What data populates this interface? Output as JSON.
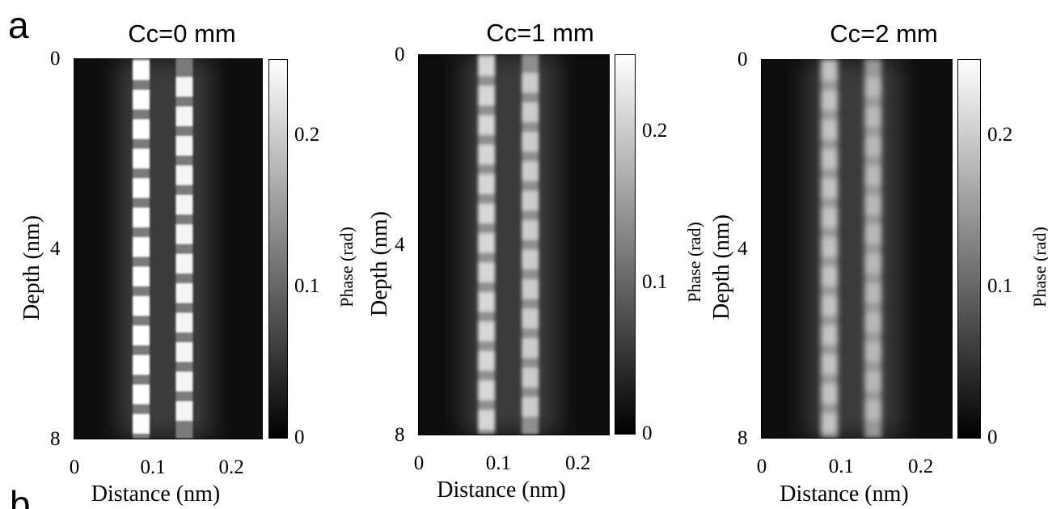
{
  "figure": {
    "letters": [
      "a",
      "b"
    ]
  },
  "chart_data": [
    {
      "type": "heatmap",
      "title": "Cc=0 mm",
      "xlabel": "Distance (nm)",
      "ylabel": "Depth (nm)",
      "colorbar_label": "Phase (rad)",
      "xlim": [
        0,
        0.24
      ],
      "ylim": [
        8,
        0
      ],
      "x_ticks": [
        "0",
        "0.1",
        "0.2"
      ],
      "y_ticks": [
        "0",
        "4",
        "8"
      ],
      "colorbar_range": [
        0,
        0.25
      ],
      "colorbar_ticks": [
        "0",
        "0.1",
        "0.2"
      ],
      "columns": [
        {
          "x": 0.085,
          "y_start": 0.25,
          "y_step": 0.62,
          "count": 13,
          "peak": 0.25,
          "base": 0.12
        },
        {
          "x": 0.14,
          "y_start": 0.6,
          "y_step": 0.62,
          "count": 12,
          "peak": 0.24,
          "base": 0.12
        }
      ]
    },
    {
      "type": "heatmap",
      "title": "Cc=1 mm",
      "xlabel": "Distance (nm)",
      "ylabel": "Depth (nm)",
      "colorbar_label": "Phase (rad)",
      "xlim": [
        0,
        0.24
      ],
      "ylim": [
        8,
        0
      ],
      "x_ticks": [
        "0",
        "0.1",
        "0.2"
      ],
      "y_ticks": [
        "0",
        "4",
        "8"
      ],
      "colorbar_range": [
        0,
        0.25
      ],
      "colorbar_ticks": [
        "0",
        "0.1",
        "0.2"
      ],
      "columns": [
        {
          "x": 0.085,
          "y_start": 0.25,
          "y_step": 0.62,
          "count": 13,
          "peak": 0.21,
          "base": 0.14
        },
        {
          "x": 0.14,
          "y_start": 0.6,
          "y_step": 0.62,
          "count": 12,
          "peak": 0.2,
          "base": 0.14
        }
      ]
    },
    {
      "type": "heatmap",
      "title": "Cc=2 mm",
      "xlabel": "Distance (nm)",
      "ylabel": "Depth (nm)",
      "colorbar_label": "Phase (rad)",
      "xlim": [
        0,
        0.24
      ],
      "ylim": [
        8,
        0
      ],
      "x_ticks": [
        "0",
        "0.1",
        "0.2"
      ],
      "y_ticks": [
        "0",
        "4",
        "8"
      ],
      "colorbar_range": [
        0,
        0.25
      ],
      "colorbar_ticks": [
        "0",
        "0.1",
        "0.2"
      ],
      "columns": [
        {
          "x": 0.085,
          "y_start": 0.25,
          "y_step": 0.62,
          "count": 13,
          "peak": 0.19,
          "base": 0.15
        },
        {
          "x": 0.14,
          "y_start": 0.6,
          "y_step": 0.62,
          "count": 12,
          "peak": 0.18,
          "base": 0.15
        }
      ]
    }
  ]
}
